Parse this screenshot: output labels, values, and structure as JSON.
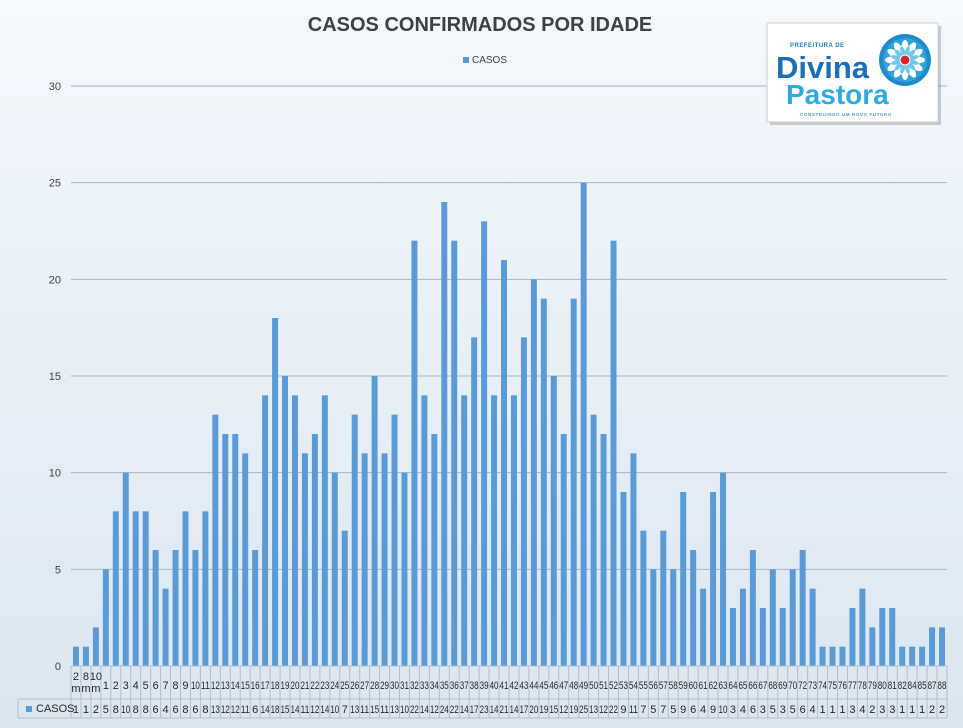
{
  "logo": {
    "top_text": "PREFEITURA DE",
    "name_line1": "Divina",
    "name_line2": "Pastora",
    "tagline": "CONSTRUINDO UM NOVO FUTURO"
  },
  "chart_data": {
    "type": "bar",
    "title": "CASOS CONFIRMADOS POR IDADE",
    "xlabel": "",
    "ylabel": "",
    "ylim": [
      0,
      30
    ],
    "yticks": [
      0,
      5,
      10,
      15,
      20,
      25,
      30
    ],
    "grid": true,
    "legend_position": "top",
    "series": [
      {
        "name": "CASOS",
        "color": "#5b9bd5",
        "values": [
          1,
          1,
          2,
          5,
          8,
          10,
          8,
          8,
          6,
          4,
          6,
          8,
          6,
          8,
          13,
          12,
          12,
          11,
          6,
          14,
          18,
          15,
          14,
          11,
          12,
          14,
          10,
          7,
          13,
          11,
          15,
          11,
          13,
          10,
          22,
          14,
          12,
          24,
          22,
          14,
          17,
          23,
          14,
          21,
          14,
          17,
          20,
          19,
          15,
          12,
          19,
          25,
          13,
          12,
          22,
          9,
          11,
          7,
          5,
          7,
          5,
          9,
          6,
          4,
          9,
          10,
          3,
          4,
          6,
          3,
          5,
          3,
          5,
          6,
          4,
          1,
          1,
          1,
          3,
          4,
          2,
          3,
          3,
          1,
          1,
          1,
          2,
          2
        ]
      }
    ],
    "categories": [
      "2m",
      "8m",
      "10m",
      "1",
      "2",
      "3",
      "4",
      "5",
      "6",
      "7",
      "8",
      "9",
      "10",
      "11",
      "12",
      "13",
      "14",
      "15",
      "16",
      "17",
      "18",
      "19",
      "20",
      "21",
      "22",
      "23",
      "24",
      "25",
      "26",
      "27",
      "28",
      "29",
      "30",
      "31",
      "32",
      "33",
      "34",
      "35",
      "36",
      "37",
      "38",
      "39",
      "40",
      "41",
      "42",
      "43",
      "44",
      "45",
      "46",
      "47",
      "48",
      "49",
      "50",
      "51",
      "52",
      "53",
      "54",
      "55",
      "56",
      "57",
      "58",
      "59",
      "60",
      "61",
      "62",
      "63",
      "64",
      "65",
      "66",
      "67",
      "68",
      "69",
      "70",
      "72",
      "73",
      "74",
      "75",
      "76",
      "77",
      "78",
      "79",
      "80",
      "81",
      "82",
      "84",
      "85",
      "87",
      "88"
    ],
    "table_row_label": "CASOS"
  }
}
